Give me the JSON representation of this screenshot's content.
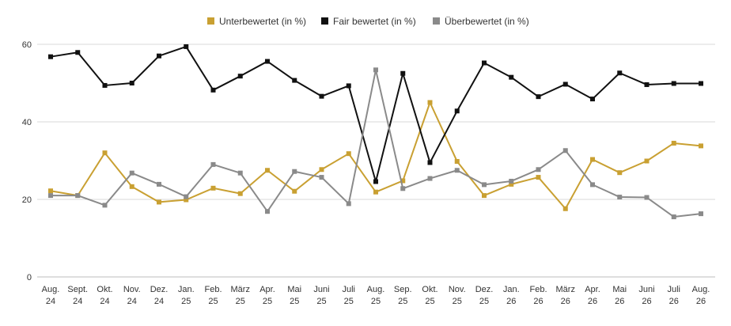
{
  "chart_data": {
    "type": "line",
    "categories": [
      [
        "Aug.",
        "24"
      ],
      [
        "Sept.",
        "24"
      ],
      [
        "Okt.",
        "24"
      ],
      [
        "Nov.",
        "24"
      ],
      [
        "Dez.",
        "24"
      ],
      [
        "Jan.",
        "25"
      ],
      [
        "Feb.",
        "25"
      ],
      [
        "März",
        "25"
      ],
      [
        "Apr.",
        "25"
      ],
      [
        "Mai",
        "25"
      ],
      [
        "Juni",
        "25"
      ],
      [
        "Juli",
        "25"
      ],
      [
        "Aug.",
        "25"
      ],
      [
        "Sep.",
        "25"
      ],
      [
        "Okt.",
        "25"
      ],
      [
        "Nov.",
        "25"
      ],
      [
        "Dez.",
        "25"
      ],
      [
        "Jan.",
        "26"
      ],
      [
        "Feb.",
        "26"
      ],
      [
        "März",
        "26"
      ],
      [
        "Apr.",
        "26"
      ],
      [
        "Mai",
        "26"
      ],
      [
        "Juni",
        "26"
      ],
      [
        "Juli",
        "26"
      ],
      [
        "Aug.",
        "26"
      ]
    ],
    "y_ticks": [
      "0",
      "20",
      "40",
      "60"
    ],
    "ylim": [
      0,
      60
    ],
    "grid": "horizontal",
    "legend_position": "top-center",
    "series": [
      {
        "name": "Unterbewertet (in %)",
        "color": "#c9a032",
        "values": [
          22.2,
          21,
          32,
          23.3,
          19.3,
          19.9,
          22.9,
          21.5,
          27.5,
          22.1,
          27.7,
          31.8,
          21.9,
          24.8,
          45,
          29.8,
          21,
          23.9,
          25.7,
          17.6,
          30.3,
          26.9,
          29.9,
          34.5,
          33.8
        ]
      },
      {
        "name": "Fair bewertet (in %)",
        "color": "#111111",
        "values": [
          56.8,
          57.9,
          49.4,
          50,
          57,
          59.4,
          48.2,
          51.8,
          55.6,
          50.7,
          46.6,
          49.3,
          24.6,
          52.5,
          29.5,
          42.8,
          55.2,
          51.5,
          46.5,
          49.7,
          45.9,
          52.6,
          49.6,
          49.9,
          49.9
        ]
      },
      {
        "name": "Überbewertet (in %)",
        "color": "#8a8a8a",
        "values": [
          21,
          21,
          18.5,
          26.8,
          23.9,
          20.7,
          29,
          26.8,
          16.9,
          27.2,
          25.7,
          18.9,
          53.4,
          22.8,
          25.4,
          27.5,
          23.8,
          24.7,
          27.7,
          32.6,
          23.8,
          20.6,
          20.5,
          15.5,
          16.3
        ]
      }
    ]
  }
}
